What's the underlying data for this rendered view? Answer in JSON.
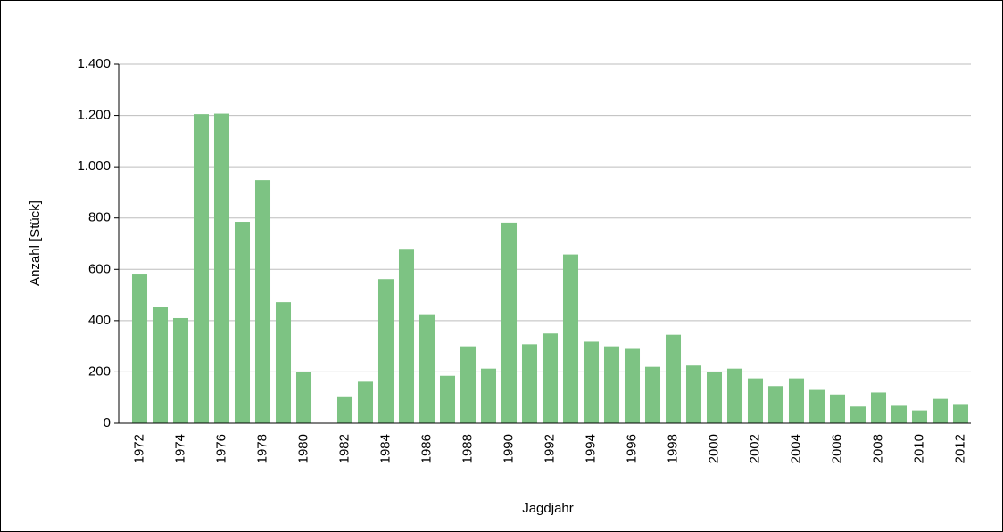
{
  "chart_data": {
    "type": "bar",
    "x_label": "Jagdjahr",
    "y_label": "Anzahl [Stück]",
    "categories": [
      "1972",
      null,
      "1974",
      null,
      "1976",
      null,
      "1978",
      null,
      "1980",
      null,
      "1982",
      null,
      "1984",
      null,
      "1986",
      null,
      "1988",
      null,
      "1990",
      null,
      "1992",
      null,
      "1994",
      null,
      "1996",
      null,
      "1998",
      null,
      "2000",
      null,
      "2002",
      null,
      "2004",
      null,
      "2006",
      null,
      "2008",
      null,
      "2010",
      null,
      "2012"
    ],
    "values": [
      580,
      455,
      410,
      1205,
      1207,
      785,
      948,
      472,
      200,
      null,
      105,
      162,
      562,
      680,
      425,
      185,
      300,
      213,
      782,
      308,
      350,
      658,
      318,
      300,
      290,
      220,
      345,
      225,
      198,
      213,
      175,
      145,
      175,
      130,
      112,
      65,
      120,
      68,
      50,
      95,
      75
    ],
    "color": "#7dc383",
    "ylim": [
      0,
      1400
    ],
    "yticks": [
      0,
      200,
      400,
      600,
      800,
      {
        "value": 1000,
        "label": "1.000"
      },
      {
        "value": 1200,
        "label": "1.200"
      },
      {
        "value": 1400,
        "label": "1.400"
      }
    ],
    "grid": true
  }
}
